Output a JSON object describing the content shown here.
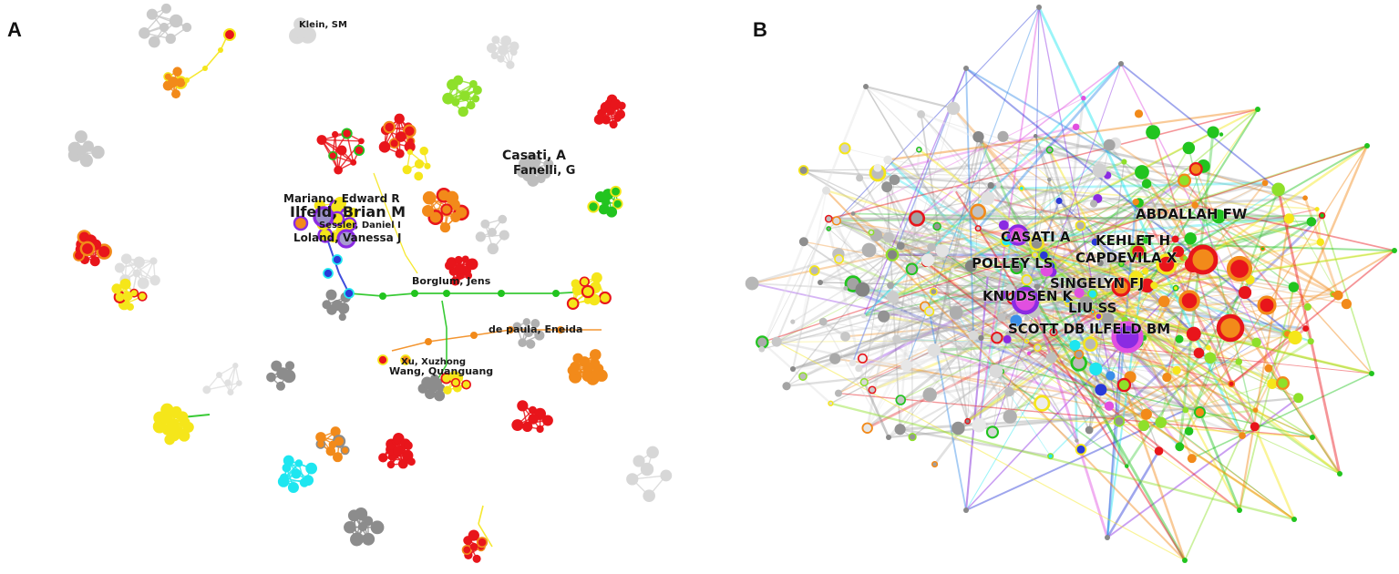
{
  "panels": [
    {
      "letter": "A",
      "labels": [
        "Klein, SM",
        "Casati, A",
        "Fanelli, G",
        "Mariano, Edward R",
        "Ilfeld, Brian M",
        "Sessler, Daniel I",
        "Loland, Vanessa J",
        "Borglum, Jens",
        "de paula, Eneida",
        "Xu, Xuzhong",
        "Wang, Quanguang"
      ]
    },
    {
      "letter": "B",
      "labels": [
        "ABDALLAH FW",
        "CASATI A",
        "KEHLET H",
        "CAPDEVILA X",
        "POLLEY LS",
        "SINGELYN FJ",
        "KNUDSEN K",
        "LIU SS",
        "SCOTT DB",
        "ILFELD BM"
      ]
    }
  ],
  "colors": {
    "red": "#e8151b",
    "orange": "#f28a1a",
    "yellow": "#f5e61a",
    "lime": "#8ee02a",
    "green": "#22c41f",
    "cyan": "#1ee6f0",
    "blue": "#2a3ad8",
    "purple": "#8a2be2",
    "magenta": "#e14fe0",
    "gray": "#8c8c8c",
    "lightgray": "#c9c9c9"
  }
}
